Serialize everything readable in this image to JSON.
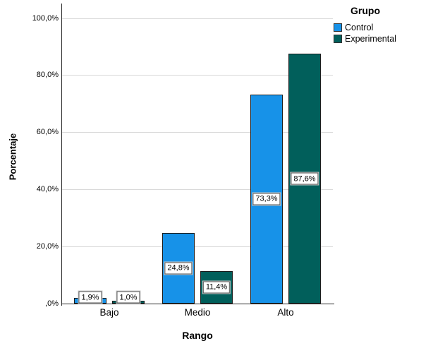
{
  "chart_data": {
    "type": "bar",
    "title": "",
    "xlabel": "Rango",
    "ylabel": "Porcentaje",
    "categories": [
      "Bajo",
      "Medio",
      "Alto"
    ],
    "series": [
      {
        "name": "Control",
        "color": "#1792E8",
        "values": [
          1.9,
          24.8,
          73.3
        ],
        "labels": [
          "1,9%",
          "24,8%",
          "73,3%"
        ]
      },
      {
        "name": "Experimental",
        "color": "#015F5B",
        "values": [
          1.0,
          11.4,
          87.6
        ],
        "labels": [
          "1,0%",
          "11,4%",
          "87,6%"
        ]
      }
    ],
    "ylim": [
      0,
      100
    ],
    "yticks": [
      0,
      20,
      40,
      60,
      80,
      100
    ],
    "ytick_labels": [
      ",0%",
      "20,0%",
      "40,0%",
      "60,0%",
      "80,0%",
      "100,0%"
    ],
    "grid": true,
    "legend": {
      "title": "Grupo",
      "position": "top-right"
    }
  }
}
